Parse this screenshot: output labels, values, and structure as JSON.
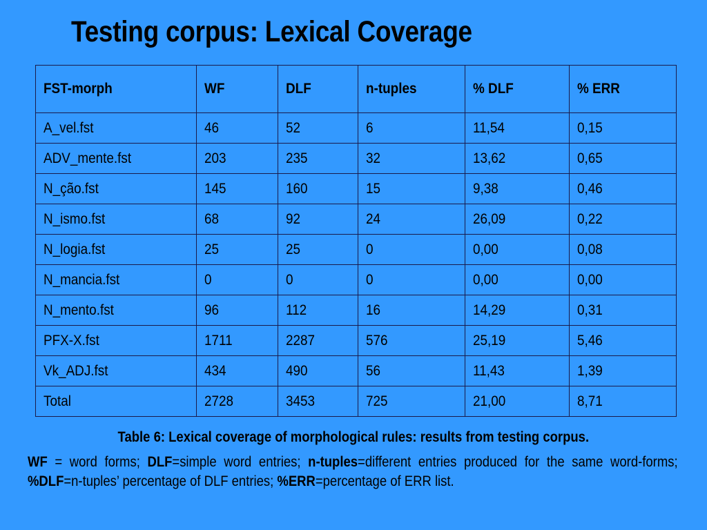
{
  "title": "Testing corpus: Lexical Coverage",
  "table": {
    "headers": [
      "FST-morph",
      "WF",
      "DLF",
      "n-tuples",
      "% DLF",
      "% ERR"
    ],
    "rows": [
      [
        "A_vel.fst",
        "46",
        "52",
        "6",
        "11,54",
        "0,15"
      ],
      [
        "ADV_mente.fst",
        "203",
        "235",
        "32",
        "13,62",
        "0,65"
      ],
      [
        "N_ção.fst",
        "145",
        "160",
        "15",
        "9,38",
        "0,46"
      ],
      [
        "N_ismo.fst",
        "68",
        "92",
        "24",
        "26,09",
        "0,22"
      ],
      [
        "N_logia.fst",
        "25",
        "25",
        "0",
        "0,00",
        "0,08"
      ],
      [
        "N_mancia.fst",
        "0",
        "0",
        "0",
        "0,00",
        "0,00"
      ],
      [
        "N_mento.fst",
        "96",
        "112",
        "16",
        "14,29",
        "0,31"
      ],
      [
        "PFX-X.fst",
        "1711",
        "2287",
        "576",
        "25,19",
        "5,46"
      ],
      [
        "Vk_ADJ.fst",
        "434",
        "490",
        "56",
        "11,43",
        "1,39"
      ],
      [
        "Total",
        "2728",
        "3453",
        "725",
        "21,00",
        "8,71"
      ]
    ]
  },
  "caption": "Table 6: Lexical coverage of morphological rules: results from testing corpus.",
  "notes": {
    "wf_term": "WF",
    "wf_def": " = word forms; ",
    "dlf_term": "DLF",
    "dlf_def": "=simple word entries; ",
    "ntuples_term": "n-tuples",
    "ntuples_def": "=different entries produced for the same word-forms; ",
    "pdlf_term": "%DLF",
    "pdlf_def": "=n-tuples’ percentage of DLF entries; ",
    "perr_term": "%ERR",
    "perr_def": "=percentage of ERR list."
  }
}
